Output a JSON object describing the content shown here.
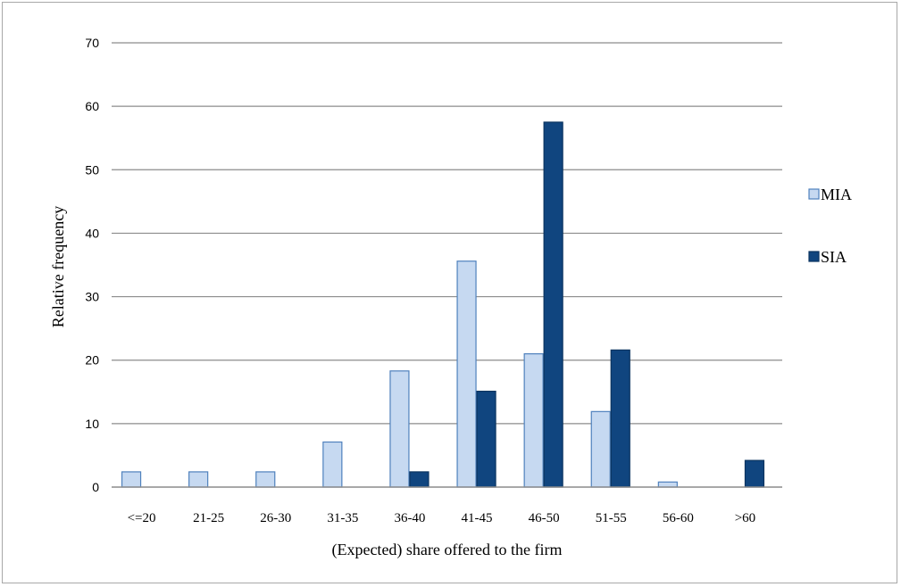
{
  "chart_data": {
    "type": "bar",
    "title": "",
    "xlabel": "(Expected) share offered to the firm",
    "ylabel": "Relative frequency",
    "categories": [
      "<=20",
      "21-25",
      "26-30",
      "31-35",
      "36-40",
      "41-45",
      "46-50",
      "51-55",
      "56-60",
      ">60"
    ],
    "series": [
      {
        "name": "MIA",
        "color": "#c6d9f1",
        "stroke": "#4f81bd",
        "values": [
          2.4,
          2.4,
          2.4,
          7.1,
          18.3,
          35.6,
          21.0,
          11.9,
          0.8,
          0
        ]
      },
      {
        "name": "SIA",
        "color": "#10457f",
        "stroke": "#0b3460",
        "values": [
          0,
          0,
          0,
          0,
          2.4,
          15.1,
          57.5,
          21.6,
          0,
          4.2
        ]
      }
    ],
    "ylim": [
      0,
      70
    ],
    "yticks": [
      0,
      10,
      20,
      30,
      40,
      50,
      60,
      70
    ],
    "grid": true,
    "legend": "right"
  }
}
